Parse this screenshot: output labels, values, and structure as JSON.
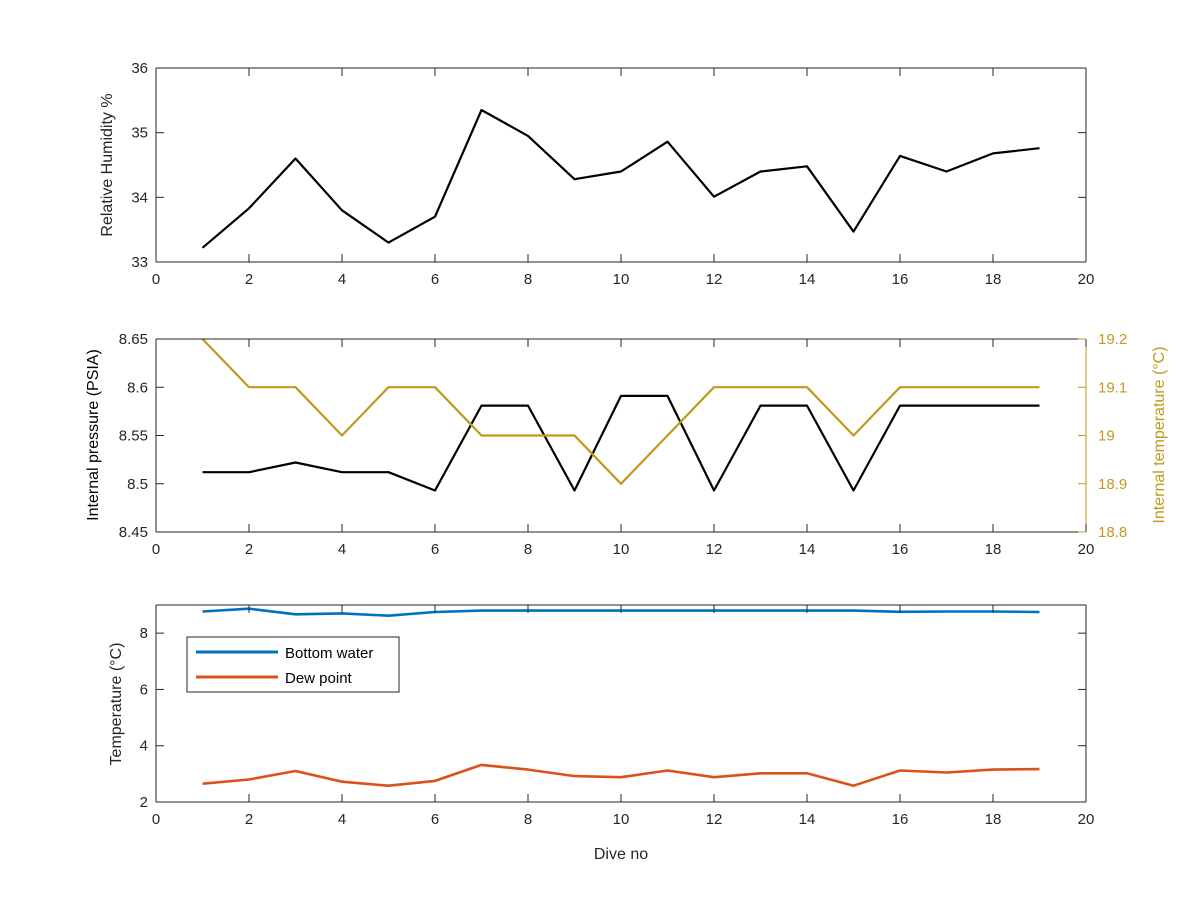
{
  "colors": {
    "black_line": "#000000",
    "right_axis": "#c19a1b",
    "bottom_water": "#0072bd",
    "dew_point": "#d95319",
    "axis": "#262626"
  },
  "chart_data": [
    {
      "type": "line",
      "xlabel": "",
      "ylabel": "Relative Humidity %",
      "xlim": [
        0,
        20
      ],
      "ylim": [
        33,
        36
      ],
      "xticks": [
        "0",
        "2",
        "4",
        "6",
        "8",
        "10",
        "12",
        "14",
        "16",
        "18",
        "20"
      ],
      "yticks": [
        "33",
        "34",
        "35",
        "36"
      ],
      "grid": false,
      "x": [
        1,
        2,
        3,
        4,
        5,
        6,
        7,
        8,
        9,
        10,
        11,
        12,
        13,
        14,
        15,
        16,
        17,
        18,
        19
      ],
      "series": [
        {
          "color": "#000000",
          "values": [
            33.22,
            33.83,
            34.6,
            33.8,
            33.3,
            33.7,
            35.35,
            34.95,
            34.28,
            34.4,
            34.86,
            34.01,
            34.4,
            34.48,
            33.47,
            34.64,
            34.4,
            34.68,
            34.76
          ]
        }
      ]
    },
    {
      "type": "line",
      "xlabel": "",
      "ylabel": "Internal pressure (PSIA)",
      "ylabel_right": "Internal temperature (°C)",
      "xlim": [
        0,
        20
      ],
      "ylim": [
        8.45,
        8.65
      ],
      "ylim_right": [
        18.8,
        19.2
      ],
      "xticks": [
        "0",
        "2",
        "4",
        "6",
        "8",
        "10",
        "12",
        "14",
        "16",
        "18",
        "20"
      ],
      "yticks": [
        "8.45",
        "8.5",
        "8.55",
        "8.6",
        "8.65"
      ],
      "yticks_right": [
        "18.8",
        "18.9",
        "19",
        "19.1",
        "19.2"
      ],
      "grid": false,
      "x": [
        1,
        2,
        3,
        4,
        5,
        6,
        7,
        8,
        9,
        10,
        11,
        12,
        13,
        14,
        15,
        16,
        17,
        18,
        19
      ],
      "series": [
        {
          "axis": "left",
          "color": "#000000",
          "values": [
            8.512,
            8.512,
            8.522,
            8.512,
            8.512,
            8.493,
            8.581,
            8.581,
            8.493,
            8.591,
            8.591,
            8.493,
            8.581,
            8.581,
            8.493,
            8.581,
            8.581,
            8.581,
            8.581
          ]
        },
        {
          "axis": "right",
          "color": "#c19a1b",
          "values": [
            19.2,
            19.1,
            19.1,
            19.0,
            19.1,
            19.1,
            19.0,
            19.0,
            19.0,
            18.9,
            19.0,
            19.1,
            19.1,
            19.1,
            19.0,
            19.1,
            19.1,
            19.1,
            19.1
          ]
        }
      ]
    },
    {
      "type": "line",
      "xlabel": "Dive no",
      "ylabel": "Temperature (°C)",
      "xlim": [
        0,
        20
      ],
      "ylim": [
        2,
        9
      ],
      "xticks": [
        "0",
        "2",
        "4",
        "6",
        "8",
        "10",
        "12",
        "14",
        "16",
        "18",
        "20"
      ],
      "yticks": [
        "2",
        "4",
        "6",
        "8"
      ],
      "grid": false,
      "legend": "top-left",
      "x": [
        1,
        2,
        3,
        4,
        5,
        6,
        7,
        8,
        9,
        10,
        11,
        12,
        13,
        14,
        15,
        16,
        17,
        18,
        19
      ],
      "series": [
        {
          "name": "Bottom water",
          "color": "#0072bd",
          "values": [
            8.77,
            8.87,
            8.67,
            8.7,
            8.62,
            8.75,
            8.8,
            8.8,
            8.8,
            8.8,
            8.8,
            8.8,
            8.8,
            8.8,
            8.8,
            8.76,
            8.77,
            8.77,
            8.75
          ]
        },
        {
          "name": "Dew point",
          "color": "#d95319",
          "values": [
            2.65,
            2.8,
            3.1,
            2.72,
            2.58,
            2.75,
            3.32,
            3.15,
            2.92,
            2.88,
            3.12,
            2.88,
            3.02,
            3.02,
            2.58,
            3.12,
            3.05,
            3.15,
            3.17
          ]
        }
      ]
    }
  ]
}
